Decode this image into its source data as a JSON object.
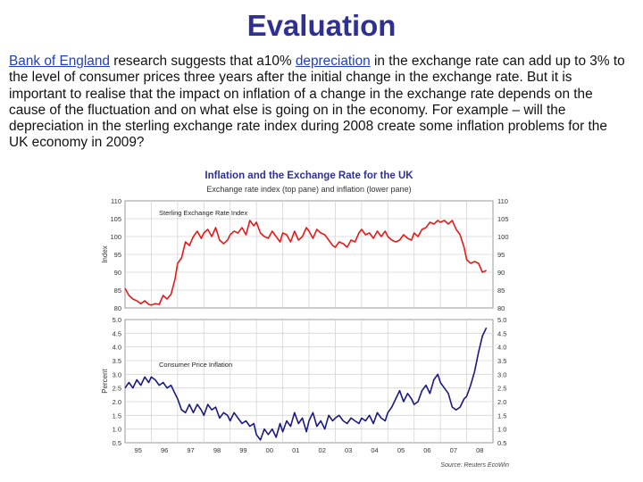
{
  "slide": {
    "title": "Evaluation",
    "paragraph": {
      "link1": "Bank of England",
      "text1": " research suggests that a10% ",
      "link2": "depreciation",
      "text2": " in the exchange rate can add up to 3% to the level of consumer prices three years after the initial change in the exchange rate. But it is important to realise that the impact on inflation of a change in the exchange rate depends on the cause of the fluctuation and on what else is going on in the economy. For example – will the depreciation in the sterling exchange rate index during 2008 create some inflation problems for the UK economy in 2009?"
    }
  },
  "chart_data": {
    "type": "line",
    "title": "Inflation and the Exchange Rate for the UK",
    "subtitle": "Exchange rate index (top pane) and inflation (lower pane)",
    "source": "Source: Reuters EcoWin",
    "x_ticks": [
      "95",
      "96",
      "97",
      "98",
      "99",
      "00",
      "01",
      "02",
      "03",
      "04",
      "05",
      "06",
      "07",
      "08"
    ],
    "xlim": [
      1995.0,
      2009.0
    ],
    "colors": {
      "top_series": "#e31b1b",
      "bottom_series": "#1a1a80",
      "title": "#2e3192"
    },
    "grid": true,
    "panes": [
      {
        "name": "top",
        "ylabel": "Index",
        "ylim": [
          80,
          110
        ],
        "y_ticks": [
          "80",
          "85",
          "90",
          "95",
          "100",
          "105",
          "110"
        ],
        "series": [
          {
            "name": "Sterling Exchange Rate Index",
            "x": [
              1995.0,
              1995.15,
              1995.3,
              1995.45,
              1995.6,
              1995.75,
              1995.9,
              1996.0,
              1996.15,
              1996.3,
              1996.45,
              1996.6,
              1996.75,
              1996.9,
              1997.0,
              1997.15,
              1997.3,
              1997.45,
              1997.6,
              1997.75,
              1997.9,
              1998.0,
              1998.15,
              1998.3,
              1998.45,
              1998.6,
              1998.75,
              1998.9,
              1999.0,
              1999.15,
              1999.3,
              1999.45,
              1999.6,
              1999.75,
              1999.9,
              2000.0,
              2000.15,
              2000.3,
              2000.45,
              2000.6,
              2000.75,
              2000.9,
              2001.0,
              2001.15,
              2001.3,
              2001.45,
              2001.6,
              2001.75,
              2001.9,
              2002.0,
              2002.15,
              2002.3,
              2002.45,
              2002.6,
              2002.75,
              2002.9,
              2003.0,
              2003.15,
              2003.3,
              2003.45,
              2003.6,
              2003.75,
              2003.9,
              2004.0,
              2004.15,
              2004.3,
              2004.45,
              2004.6,
              2004.75,
              2004.9,
              2005.0,
              2005.15,
              2005.3,
              2005.45,
              2005.6,
              2005.75,
              2005.9,
              2006.0,
              2006.15,
              2006.3,
              2006.45,
              2006.6,
              2006.75,
              2006.9,
              2007.0,
              2007.15,
              2007.3,
              2007.45,
              2007.6,
              2007.75,
              2007.9,
              2008.0,
              2008.15,
              2008.3,
              2008.45,
              2008.6,
              2008.75
            ],
            "values": [
              85.5,
              83.5,
              82.5,
              82.0,
              81.2,
              82.0,
              81.0,
              80.8,
              81.2,
              81.0,
              83.5,
              82.5,
              83.8,
              88.0,
              92.5,
              94.0,
              98.5,
              97.5,
              100.0,
              101.5,
              99.5,
              101.0,
              102.0,
              100.0,
              102.5,
              99.0,
              98.0,
              99.0,
              100.5,
              101.5,
              101.0,
              102.5,
              100.5,
              104.5,
              103.0,
              104.0,
              101.0,
              100.0,
              99.5,
              101.5,
              100.0,
              98.5,
              101.0,
              100.5,
              98.5,
              101.5,
              99.0,
              100.0,
              102.5,
              101.5,
              99.5,
              102.0,
              101.0,
              100.5,
              99.0,
              97.5,
              97.0,
              98.5,
              98.0,
              97.0,
              99.0,
              98.5,
              101.0,
              102.0,
              100.5,
              101.0,
              99.5,
              101.5,
              100.0,
              101.5,
              100.0,
              99.0,
              98.5,
              99.0,
              100.5,
              99.5,
              99.0,
              101.0,
              100.0,
              102.0,
              102.5,
              104.0,
              103.5,
              104.5,
              104.0,
              104.5,
              103.5,
              104.5,
              102.0,
              100.5,
              97.0,
              93.5,
              92.5,
              93.0,
              92.5,
              90.0,
              90.5
            ]
          }
        ]
      },
      {
        "name": "bottom",
        "ylabel": "Percent",
        "ylim": [
          0.5,
          5.0
        ],
        "y_ticks": [
          "0.5",
          "1.0",
          "1.5",
          "2.0",
          "2.5",
          "3.0",
          "3.5",
          "4.0",
          "4.5",
          "5.0"
        ],
        "series": [
          {
            "name": "Consumer Price Inflation",
            "x": [
              1995.0,
              1995.15,
              1995.3,
              1995.45,
              1995.6,
              1995.75,
              1995.9,
              1996.0,
              1996.15,
              1996.3,
              1996.45,
              1996.6,
              1996.75,
              1996.9,
              1997.0,
              1997.15,
              1997.3,
              1997.45,
              1997.6,
              1997.75,
              1997.9,
              1998.0,
              1998.15,
              1998.3,
              1998.45,
              1998.6,
              1998.75,
              1998.9,
              1999.0,
              1999.15,
              1999.3,
              1999.45,
              1999.6,
              1999.75,
              1999.9,
              2000.0,
              2000.15,
              2000.3,
              2000.45,
              2000.6,
              2000.75,
              2000.9,
              2001.0,
              2001.15,
              2001.3,
              2001.45,
              2001.6,
              2001.75,
              2001.9,
              2002.0,
              2002.15,
              2002.3,
              2002.45,
              2002.6,
              2002.75,
              2002.9,
              2003.0,
              2003.15,
              2003.3,
              2003.45,
              2003.6,
              2003.75,
              2003.9,
              2004.0,
              2004.15,
              2004.3,
              2004.45,
              2004.6,
              2004.75,
              2004.9,
              2005.0,
              2005.15,
              2005.3,
              2005.45,
              2005.6,
              2005.75,
              2005.9,
              2006.0,
              2006.15,
              2006.3,
              2006.45,
              2006.6,
              2006.75,
              2006.9,
              2007.0,
              2007.15,
              2007.3,
              2007.45,
              2007.6,
              2007.75,
              2007.9,
              2008.0,
              2008.15,
              2008.3,
              2008.45,
              2008.6,
              2008.75
            ],
            "values": [
              2.5,
              2.7,
              2.5,
              2.8,
              2.6,
              2.9,
              2.7,
              2.9,
              2.8,
              2.6,
              2.7,
              2.5,
              2.6,
              2.3,
              2.1,
              1.7,
              1.6,
              1.9,
              1.6,
              1.9,
              1.7,
              1.5,
              1.9,
              1.7,
              1.8,
              1.4,
              1.6,
              1.5,
              1.3,
              1.6,
              1.4,
              1.2,
              1.3,
              1.1,
              1.2,
              0.8,
              0.6,
              1.0,
              0.8,
              1.0,
              0.7,
              1.2,
              0.9,
              1.3,
              1.1,
              1.6,
              1.2,
              1.4,
              0.9,
              1.3,
              1.6,
              1.1,
              1.3,
              1.0,
              1.5,
              1.3,
              1.4,
              1.5,
              1.3,
              1.2,
              1.4,
              1.3,
              1.2,
              1.4,
              1.3,
              1.5,
              1.2,
              1.6,
              1.4,
              1.3,
              1.6,
              1.8,
              2.1,
              2.4,
              2.0,
              2.3,
              2.1,
              1.9,
              2.0,
              2.4,
              2.6,
              2.3,
              2.8,
              3.0,
              2.7,
              2.5,
              2.3,
              1.8,
              1.7,
              1.8,
              2.1,
              2.2,
              2.6,
              3.1,
              3.8,
              4.4,
              4.7
            ]
          }
        ]
      }
    ]
  }
}
